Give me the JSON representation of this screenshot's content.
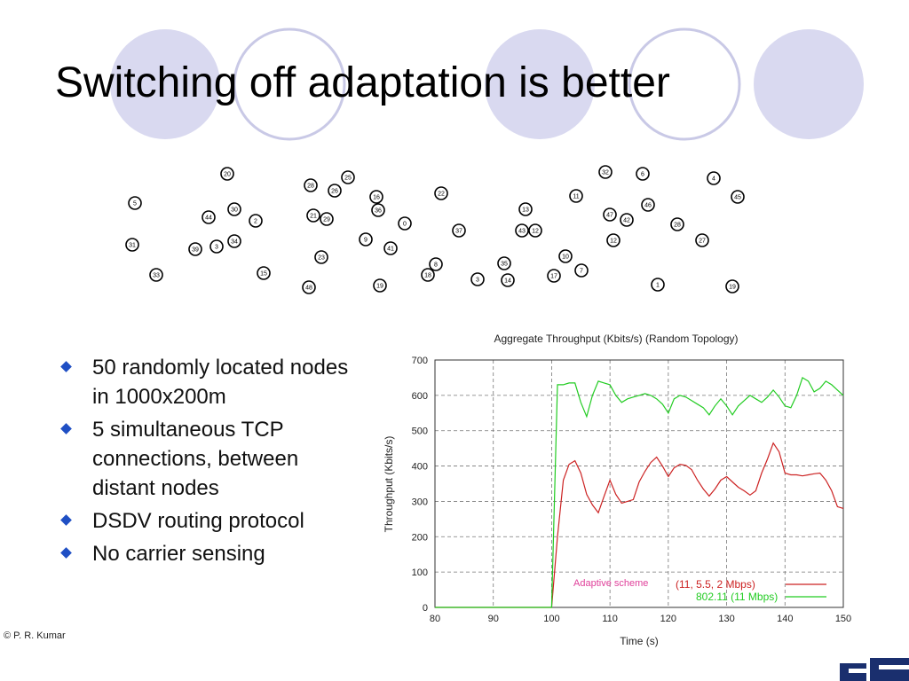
{
  "slide": {
    "title": "Switching off adaptation is better",
    "bullets": [
      "50 randomly located nodes in 1000x200m",
      "5 simultaneous TCP connections, between distant nodes",
      "DSDV routing protocol",
      "No carrier sensing"
    ],
    "copyright": "© P. R. Kumar",
    "bullet_color": "#1f4fc4",
    "circle_fill": "#d9d9f0",
    "circle_stroke": "#c9c9e6"
  },
  "topology": {
    "nodes": [
      {
        "id": "20"
      },
      {
        "id": "5"
      },
      {
        "id": "30"
      },
      {
        "id": "44"
      },
      {
        "id": "2"
      },
      {
        "id": "31"
      },
      {
        "id": "39"
      },
      {
        "id": "3"
      },
      {
        "id": "34"
      },
      {
        "id": "33"
      },
      {
        "id": "15"
      },
      {
        "id": "28"
      },
      {
        "id": "26"
      },
      {
        "id": "25"
      },
      {
        "id": "21"
      },
      {
        "id": "29"
      },
      {
        "id": "23"
      },
      {
        "id": "48"
      },
      {
        "id": "16"
      },
      {
        "id": "36"
      },
      {
        "id": "0"
      },
      {
        "id": "9"
      },
      {
        "id": "41"
      },
      {
        "id": "19"
      },
      {
        "id": "22"
      },
      {
        "id": "37"
      },
      {
        "id": "8"
      },
      {
        "id": "18"
      },
      {
        "id": "3"
      },
      {
        "id": "35"
      },
      {
        "id": "14"
      },
      {
        "id": "13"
      },
      {
        "id": "43"
      },
      {
        "id": "12"
      },
      {
        "id": "11"
      },
      {
        "id": "10"
      },
      {
        "id": "17"
      },
      {
        "id": "7"
      },
      {
        "id": "32"
      },
      {
        "id": "6"
      },
      {
        "id": "46"
      },
      {
        "id": "47"
      },
      {
        "id": "42"
      },
      {
        "id": "12"
      },
      {
        "id": "4"
      },
      {
        "id": "45"
      },
      {
        "id": "28"
      },
      {
        "id": "27"
      },
      {
        "id": "1"
      },
      {
        "id": "19"
      }
    ]
  },
  "chart_data": {
    "type": "line",
    "title": "Aggregate Throughput (Kbits/s) (Random Topology)",
    "xlabel": "Time (s)",
    "ylabel": "Throughput (Kbits/s)",
    "xlim": [
      80,
      150
    ],
    "ylim": [
      0,
      700
    ],
    "xticks": [
      80,
      90,
      100,
      110,
      120,
      130,
      140,
      150
    ],
    "yticks": [
      0,
      100,
      200,
      300,
      400,
      500,
      600,
      700
    ],
    "grid": true,
    "legend_position": "bottom-right",
    "annotation": "Adaptive scheme",
    "annotation_color": "#e0409a",
    "series": [
      {
        "name": "(11, 5.5, 2 Mbps)",
        "color": "#cc2222",
        "x": [
          80,
          100,
          101,
          102,
          103,
          104,
          105,
          106,
          107,
          108,
          109,
          110,
          111,
          112,
          113,
          114,
          115,
          116,
          117,
          118,
          119,
          120,
          121,
          122,
          123,
          124,
          125,
          126,
          127,
          128,
          129,
          130,
          131,
          132,
          133,
          134,
          135,
          136,
          137,
          138,
          139,
          140,
          141,
          142,
          143,
          144,
          145,
          146,
          147,
          148,
          149,
          150
        ],
        "y": [
          0,
          0,
          200,
          360,
          405,
          415,
          380,
          320,
          290,
          268,
          315,
          360,
          320,
          295,
          300,
          305,
          355,
          385,
          410,
          425,
          400,
          370,
          395,
          405,
          402,
          390,
          360,
          335,
          315,
          335,
          360,
          370,
          355,
          340,
          330,
          318,
          330,
          380,
          420,
          465,
          440,
          380,
          375,
          375,
          372,
          375,
          378,
          380,
          360,
          330,
          285,
          280
        ]
      },
      {
        "name": "802.11 (11 Mbps)",
        "color": "#22cc22",
        "x": [
          80,
          100,
          101,
          102,
          103,
          104,
          105,
          106,
          107,
          108,
          109,
          110,
          111,
          112,
          113,
          114,
          115,
          116,
          117,
          118,
          119,
          120,
          121,
          122,
          123,
          124,
          125,
          126,
          127,
          128,
          129,
          130,
          131,
          132,
          133,
          134,
          135,
          136,
          137,
          138,
          139,
          140,
          141,
          142,
          143,
          144,
          145,
          146,
          147,
          148,
          149,
          150
        ],
        "y": [
          0,
          0,
          630,
          630,
          635,
          635,
          580,
          540,
          600,
          640,
          635,
          630,
          600,
          580,
          590,
          595,
          600,
          605,
          600,
          590,
          575,
          550,
          590,
          600,
          595,
          585,
          575,
          565,
          545,
          570,
          590,
          570,
          545,
          570,
          585,
          600,
          590,
          580,
          595,
          615,
          595,
          570,
          565,
          600,
          650,
          640,
          610,
          620,
          640,
          630,
          615,
          600
        ]
      }
    ]
  }
}
